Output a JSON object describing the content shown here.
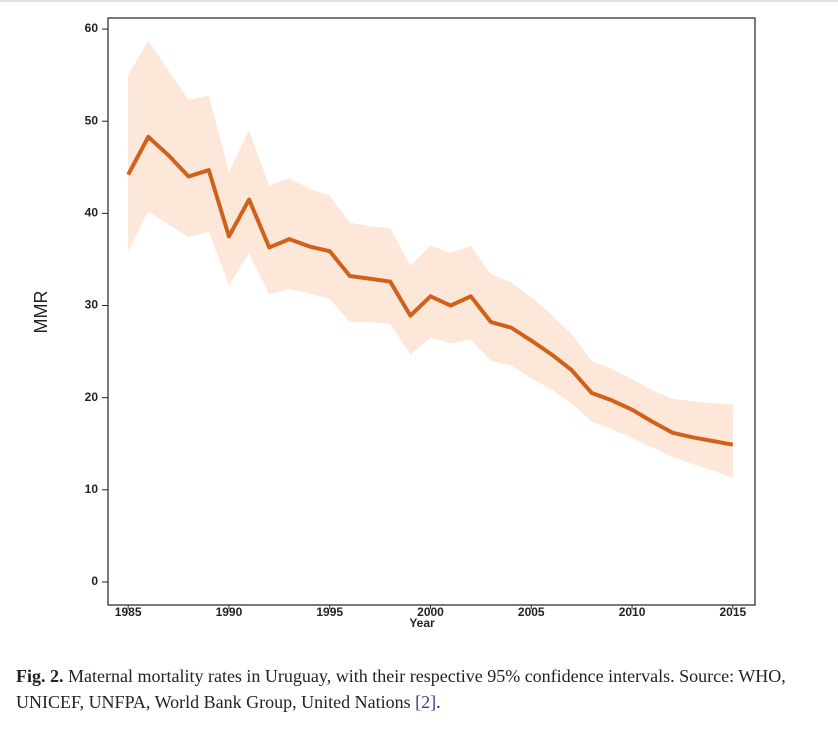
{
  "chart_data": {
    "type": "line-band",
    "xlabel": "Year",
    "ylabel": "MMR",
    "x": [
      1985,
      1986,
      1987,
      1988,
      1989,
      1990,
      1991,
      1992,
      1993,
      1994,
      1995,
      1996,
      1997,
      1998,
      1999,
      2000,
      2001,
      2002,
      2003,
      2004,
      2005,
      2006,
      2007,
      2008,
      2009,
      2010,
      2011,
      2012,
      2013,
      2014,
      2015
    ],
    "values": [
      44.2,
      48.3,
      46.3,
      44.0,
      44.7,
      37.5,
      41.5,
      36.3,
      37.2,
      36.4,
      35.9,
      33.2,
      32.9,
      32.6,
      28.9,
      31.0,
      30.0,
      31.0,
      28.2,
      27.6,
      26.2,
      24.7,
      23.0,
      20.5,
      19.7,
      18.7,
      17.4,
      16.2,
      15.7,
      15.3,
      14.9
    ],
    "upper": [
      55.0,
      58.7,
      55.5,
      52.3,
      52.8,
      44.5,
      49.0,
      43.0,
      43.8,
      42.7,
      41.9,
      39.0,
      38.6,
      38.4,
      34.3,
      36.5,
      35.7,
      36.5,
      33.4,
      32.5,
      30.9,
      29.0,
      26.9,
      24.0,
      23.1,
      22.0,
      20.8,
      19.9,
      19.6,
      19.4,
      19.3
    ],
    "lower": [
      35.9,
      40.2,
      38.8,
      37.4,
      38.0,
      32.2,
      35.7,
      31.2,
      31.8,
      31.3,
      30.7,
      28.2,
      28.2,
      28.0,
      24.7,
      26.5,
      25.9,
      26.3,
      24.0,
      23.5,
      22.1,
      20.9,
      19.4,
      17.4,
      16.6,
      15.6,
      14.6,
      13.6,
      12.8,
      12.1,
      11.3
    ],
    "line_color": "#d0611b",
    "band_color": "#fde7d9",
    "xlim": [
      1984,
      2016.1
    ],
    "ylim": [
      -2.5,
      61.2
    ],
    "xticks": [
      1985,
      1990,
      1995,
      2000,
      2005,
      2010,
      2015
    ],
    "yticks": [
      0,
      10,
      20,
      30,
      40,
      50,
      60
    ]
  },
  "caption": {
    "label": "Fig. 2.",
    "text": "Maternal mortality rates in Uruguay, with their respective 95% confidence intervals. Source: WHO, UNICEF, UNFPA, World Bank Group, United Nations",
    "ref": "[2]",
    "end": "."
  }
}
